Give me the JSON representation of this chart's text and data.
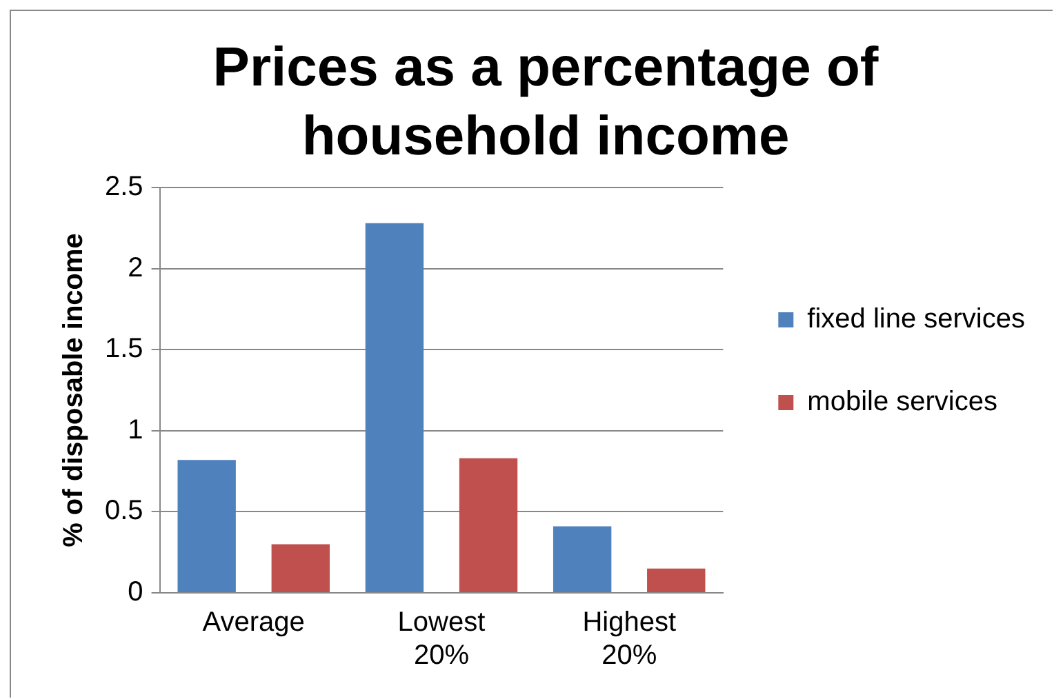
{
  "chart_data": {
    "type": "bar",
    "title": "Prices as a percentage of household income",
    "ylabel": "% of disposable income",
    "categories": [
      "Average",
      "Lowest 20%",
      "Highest 20%"
    ],
    "series": [
      {
        "name": "fixed line services",
        "color": "#4f81bd",
        "values": [
          0.82,
          2.28,
          0.41
        ]
      },
      {
        "name": "mobile services",
        "color": "#c0504d",
        "values": [
          0.3,
          0.83,
          0.15
        ]
      }
    ],
    "ylim": [
      0,
      2.5
    ],
    "yticks": [
      0,
      0.5,
      1,
      1.5,
      2,
      2.5
    ],
    "grid": "y",
    "legend": "right"
  }
}
